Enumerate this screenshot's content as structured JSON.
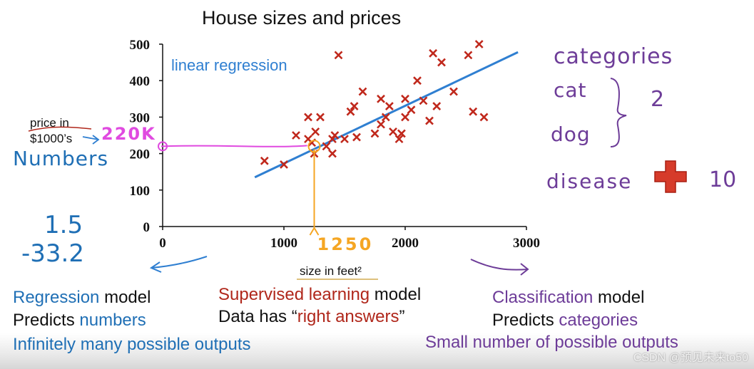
{
  "chart_data": {
    "type": "scatter",
    "title": "House sizes and prices",
    "xlabel": "size in feet²",
    "ylabel": "price in $1000’s",
    "xlim": [
      0,
      3000
    ],
    "ylim": [
      0,
      500
    ],
    "x_ticks": [
      "0",
      "1000",
      "2000",
      "3000"
    ],
    "y_ticks": [
      "0",
      "100",
      "200",
      "300",
      "400",
      "500"
    ],
    "grid": false,
    "points": [
      [
        840,
        180
      ],
      [
        1000,
        170
      ],
      [
        1100,
        250
      ],
      [
        1200,
        300
      ],
      [
        1200,
        240
      ],
      [
        1250,
        200
      ],
      [
        1230,
        230
      ],
      [
        1260,
        260
      ],
      [
        1300,
        300
      ],
      [
        1350,
        220
      ],
      [
        1400,
        200
      ],
      [
        1400,
        240
      ],
      [
        1420,
        250
      ],
      [
        1450,
        470
      ],
      [
        1500,
        240
      ],
      [
        1550,
        315
      ],
      [
        1580,
        330
      ],
      [
        1600,
        245
      ],
      [
        1650,
        370
      ],
      [
        1750,
        255
      ],
      [
        1800,
        280
      ],
      [
        1800,
        350
      ],
      [
        1840,
        300
      ],
      [
        1870,
        330
      ],
      [
        1900,
        260
      ],
      [
        1950,
        240
      ],
      [
        1970,
        255
      ],
      [
        2000,
        300
      ],
      [
        2000,
        350
      ],
      [
        2050,
        320
      ],
      [
        2100,
        400
      ],
      [
        2150,
        345
      ],
      [
        2200,
        290
      ],
      [
        2230,
        475
      ],
      [
        2260,
        330
      ],
      [
        2300,
        450
      ],
      [
        2400,
        370
      ],
      [
        2520,
        470
      ],
      [
        2560,
        315
      ],
      [
        2610,
        500
      ],
      [
        2650,
        300
      ]
    ],
    "regression_line": {
      "x": [
        760,
        2930
      ],
      "y": [
        135,
        478
      ]
    },
    "annotations": {
      "line_label": "linear regression",
      "input_x": "1250",
      "output_y": "220K"
    },
    "colors": {
      "points": "#c0281c",
      "line": "#2f7fd1",
      "annotation_y": "#e04ae0",
      "annotation_x": "#f5a623"
    }
  },
  "left_notes": {
    "numbers": "Numbers",
    "value1": "1.5",
    "value2": "-33.2"
  },
  "right_notes": {
    "categories": "categories",
    "cat": "cat",
    "dog": "dog",
    "count_small": "2",
    "disease": "disease",
    "count_large": "10"
  },
  "regression_box": {
    "line1_a": "Regression",
    "line1_b": " model",
    "line2_a": "Predicts ",
    "line2_b": "numbers",
    "line3": "Infinitely many possible outputs"
  },
  "supervised_box": {
    "line1_a": "Supervised learning",
    "line1_b": " model",
    "line2_a": "Data has “",
    "line2_b": "right answers",
    "line2_c": "”"
  },
  "classification_box": {
    "line1_a": "Classification",
    "line1_b": " model",
    "line2_a": "Predicts ",
    "line2_b": "categories",
    "line3": "Small number of possible outputs"
  },
  "watermark": "CSDN @预见未来to50"
}
